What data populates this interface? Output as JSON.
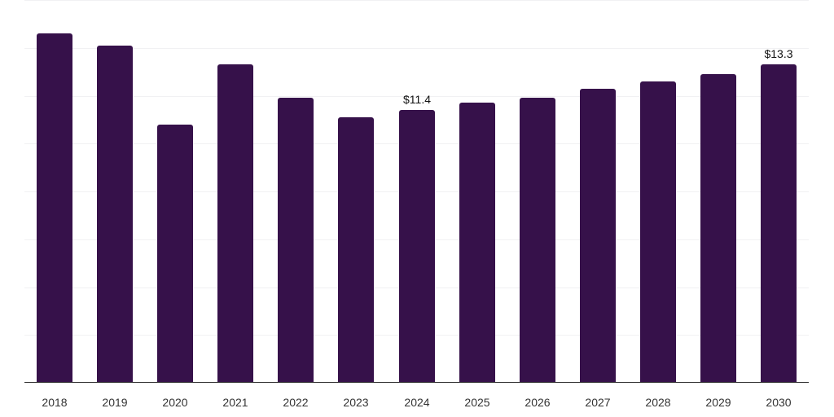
{
  "chart_data": {
    "type": "bar",
    "title": "",
    "xlabel": "",
    "ylabel": "",
    "categories": [
      "2018",
      "2019",
      "2020",
      "2021",
      "2022",
      "2023",
      "2024",
      "2025",
      "2026",
      "2027",
      "2028",
      "2029",
      "2030"
    ],
    "values": [
      14.6,
      14.1,
      10.8,
      13.3,
      11.9,
      11.1,
      11.4,
      11.7,
      11.9,
      12.3,
      12.6,
      12.9,
      13.3
    ],
    "ylim": [
      0,
      16
    ],
    "grid": true,
    "grid_step": 2,
    "legend": null,
    "annotations": [
      {
        "category": "2024",
        "text": "$11.4"
      },
      {
        "category": "2030",
        "text": "$13.3"
      }
    ],
    "colors": {
      "bar": "#36114a",
      "grid": "#f1f1f3",
      "axis": "#333333",
      "label": "#333333"
    }
  }
}
